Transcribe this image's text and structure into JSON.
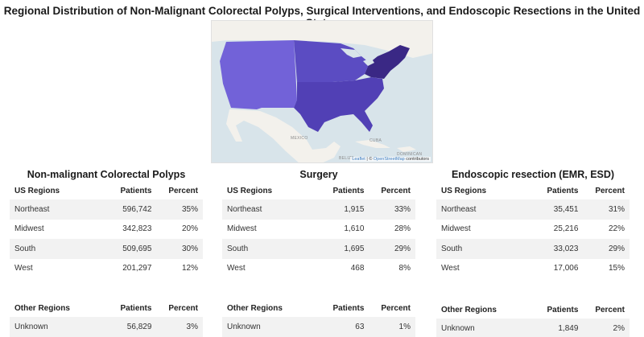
{
  "title": "Regional Distribution of Non-Malignant Colorectal Polyps, Surgical Interventions, and Endoscopic Resections in the United States",
  "map": {
    "labels": {
      "mexico": "MEXICO",
      "cuba": "CUBA",
      "dominican": "DOMINICAN",
      "belize": "BELIZE"
    },
    "attribution": {
      "leaflet": "Leaflet",
      "separator": " | © ",
      "osm": "OpenStreetMap",
      "suffix": " contributors"
    },
    "colors": {
      "west": "#7262d8",
      "midwest": "#5b4cc2",
      "south": "#5140b5",
      "northeast": "#3a2885",
      "land": "#f3f1ec",
      "water": "#d8e4ea"
    }
  },
  "headers": {
    "region": "US Regions",
    "other_region": "Other Regions",
    "patients": "Patients",
    "percent": "Percent"
  },
  "panels": [
    {
      "title": "Non-malignant Colorectal Polyps",
      "rows": [
        {
          "region": "Northeast",
          "patients": "596,742",
          "percent": "35%"
        },
        {
          "region": "Midwest",
          "patients": "342,823",
          "percent": "20%"
        },
        {
          "region": "South",
          "patients": "509,695",
          "percent": "30%"
        },
        {
          "region": "West",
          "patients": "201,297",
          "percent": "12%"
        }
      ],
      "other": [
        {
          "region": "Unknown",
          "patients": "56,829",
          "percent": "3%"
        }
      ]
    },
    {
      "title": "Surgery",
      "rows": [
        {
          "region": "Northeast",
          "patients": "1,915",
          "percent": "33%"
        },
        {
          "region": "Midwest",
          "patients": "1,610",
          "percent": "28%"
        },
        {
          "region": "South",
          "patients": "1,695",
          "percent": "29%"
        },
        {
          "region": "West",
          "patients": "468",
          "percent": "8%"
        }
      ],
      "other": [
        {
          "region": "Unknown",
          "patients": "63",
          "percent": "1%"
        }
      ]
    },
    {
      "title": "Endoscopic resection (EMR, ESD)",
      "rows": [
        {
          "region": "Northeast",
          "patients": "35,451",
          "percent": "31%"
        },
        {
          "region": "Midwest",
          "patients": "25,216",
          "percent": "22%"
        },
        {
          "region": "South",
          "patients": "33,023",
          "percent": "29%"
        },
        {
          "region": "West",
          "patients": "17,006",
          "percent": "15%"
        }
      ],
      "other": [
        {
          "region": "Unknown",
          "patients": "1,849",
          "percent": "2%"
        }
      ]
    }
  ]
}
